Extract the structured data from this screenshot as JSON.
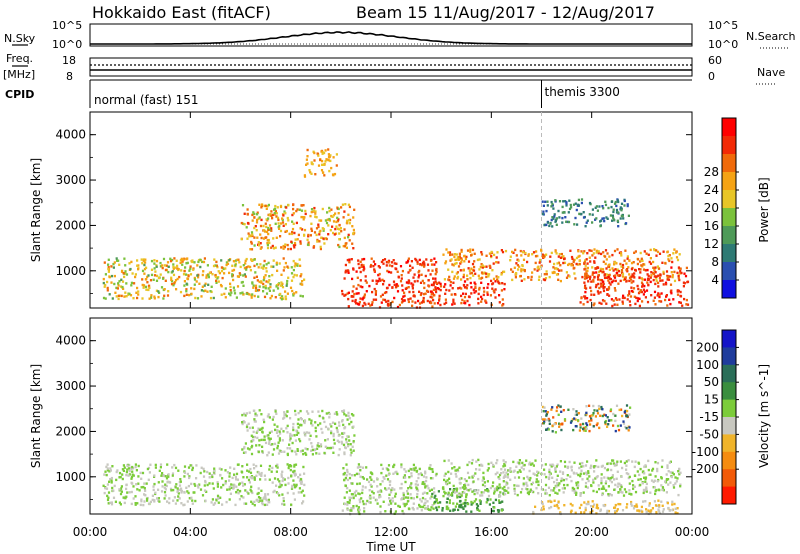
{
  "header": {
    "title": "Hokkaido East (fitACF)",
    "beam_info": "Beam 15  11/Aug/2017 - 12/Aug/2017"
  },
  "strip_labels": {
    "nsky": "N.Sky",
    "freq": "Freq.",
    "freq_unit": "[MHz]",
    "cpid": "CPID",
    "nsearch": "N.Search",
    "nave": "Nave"
  },
  "strip_ticks": {
    "nsky_top": "10^5",
    "nsky_bottom": "10^0",
    "freq_top": "18",
    "freq_bottom": "8",
    "nave_top": "60",
    "nave_bottom": "0",
    "nsearch_top": "10^5",
    "nsearch_bottom": "10^0"
  },
  "cpid_modes": [
    {
      "label": "normal (fast) 151",
      "start_hour": 0
    },
    {
      "label": "themis 3300",
      "start_hour": 18
    }
  ],
  "power_colorbar": {
    "label": "Power [dB]",
    "ticks": [
      "4",
      "8",
      "12",
      "16",
      "20",
      "24",
      "28"
    ],
    "colors": [
      "#1010e0",
      "#2a4fb0",
      "#2e7a74",
      "#4e9a58",
      "#7bc23c",
      "#e8c628",
      "#f5a314",
      "#f06a0a",
      "#f22a06",
      "#ff0000"
    ]
  },
  "velocity_colorbar": {
    "label": "Velocity [m s^-1]",
    "ticks": [
      "200",
      "100",
      "50",
      "15",
      "-15",
      "-50",
      "-100",
      "-200"
    ],
    "colors": [
      "#1414c8",
      "#1f3c9c",
      "#2a6e58",
      "#3a8e3e",
      "#7ccc3a",
      "#c8c8c0",
      "#f0b42a",
      "#f58c10",
      "#f25a08",
      "#ff1a00"
    ]
  },
  "chart_data": [
    {
      "type": "heatmap",
      "quantity": "Power [dB]",
      "ylabel": "Slant Range [km]",
      "xlabel": "Time UT",
      "xlim_hours": [
        0,
        24
      ],
      "ylim_km": [
        180,
        4500
      ],
      "yticks": [
        "1000",
        "2000",
        "3000",
        "4000"
      ],
      "xticks": [
        "00:00",
        "04:00",
        "08:00",
        "12:00",
        "16:00",
        "20:00",
        "00:00"
      ],
      "echo_regions": [
        {
          "t": [
            0.5,
            8.5
          ],
          "r": [
            400,
            1300
          ],
          "power_db": [
            12,
            24
          ]
        },
        {
          "t": [
            6.0,
            10.5
          ],
          "r": [
            1500,
            2500
          ],
          "power_db": [
            14,
            28
          ]
        },
        {
          "t": [
            8.5,
            9.8
          ],
          "r": [
            3100,
            3700
          ],
          "power_db": [
            16,
            24
          ]
        },
        {
          "t": [
            10.0,
            13.8
          ],
          "r": [
            200,
            1300
          ],
          "power_db": [
            24,
            30
          ]
        },
        {
          "t": [
            13.5,
            16.5
          ],
          "r": [
            250,
            800
          ],
          "power_db": [
            24,
            30
          ]
        },
        {
          "t": [
            14.0,
            23.5
          ],
          "r": [
            800,
            1500
          ],
          "power_db": [
            16,
            28
          ]
        },
        {
          "t": [
            19.5,
            23.8
          ],
          "r": [
            250,
            1100
          ],
          "power_db": [
            24,
            30
          ]
        },
        {
          "t": [
            18.0,
            21.5
          ],
          "r": [
            2000,
            2600
          ],
          "power_db": [
            4,
            12
          ]
        }
      ]
    },
    {
      "type": "heatmap",
      "quantity": "Velocity [m s^-1]",
      "ylabel": "Slant Range [km]",
      "xlabel": "Time UT",
      "xlim_hours": [
        0,
        24
      ],
      "ylim_km": [
        180,
        4500
      ],
      "yticks": [
        "1000",
        "2000",
        "3000",
        "4000"
      ],
      "xticks": [
        "00:00",
        "04:00",
        "08:00",
        "12:00",
        "16:00",
        "20:00",
        "00:00"
      ],
      "echo_regions": [
        {
          "t": [
            0.5,
            8.5
          ],
          "r": [
            400,
            1300
          ],
          "velocity_ms": [
            -15,
            15
          ]
        },
        {
          "t": [
            6.0,
            10.5
          ],
          "r": [
            1500,
            2500
          ],
          "velocity_ms": [
            -15,
            15
          ]
        },
        {
          "t": [
            10.0,
            13.8
          ],
          "r": [
            200,
            1300
          ],
          "velocity_ms": [
            -15,
            15
          ]
        },
        {
          "t": [
            13.5,
            16.5
          ],
          "r": [
            250,
            800
          ],
          "velocity_ms": [
            15,
            100
          ]
        },
        {
          "t": [
            14.0,
            23.5
          ],
          "r": [
            600,
            1400
          ],
          "velocity_ms": [
            -15,
            15
          ]
        },
        {
          "t": [
            17.5,
            23.5
          ],
          "r": [
            200,
            500
          ],
          "velocity_ms": [
            -100,
            -15
          ]
        },
        {
          "t": [
            18.0,
            21.5
          ],
          "r": [
            2000,
            2600
          ],
          "velocity_ms": [
            -200,
            200
          ]
        }
      ]
    }
  ]
}
